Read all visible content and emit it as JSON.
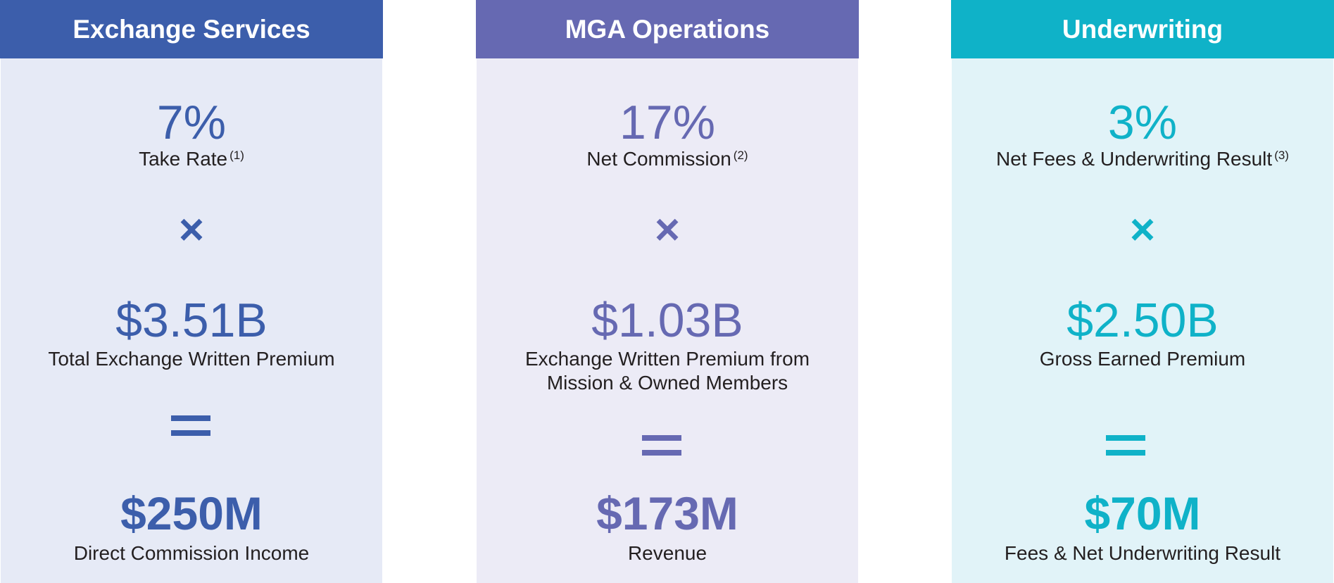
{
  "columns": [
    {
      "title": "Exchange Services",
      "rate": "7%",
      "rate_label": "Take Rate",
      "rate_note": "(1)",
      "premium": "$3.51B",
      "premium_label_line1": "Total Exchange Written Premium",
      "premium_label_line2": "",
      "result": "$250M",
      "result_label": "Direct Commission Income",
      "colors": {
        "header": "#3c5eab",
        "panel": "#e6eaf6",
        "accent": "#3c5eab"
      },
      "times_icon": "multiply-icon",
      "equals_icon": "equals-icon"
    },
    {
      "title": "MGA Operations",
      "rate": "17%",
      "rate_label": "Net Commission",
      "rate_note": "(2)",
      "premium": "$1.03B",
      "premium_label_line1": "Exchange Written Premium from",
      "premium_label_line2": "Mission & Owned Members",
      "result": "$173M",
      "result_label": "Revenue",
      "colors": {
        "header": "#6669b2",
        "panel": "#ecebf6",
        "accent": "#6669b2"
      },
      "times_icon": "multiply-icon",
      "equals_icon": "equals-icon"
    },
    {
      "title": "Underwriting",
      "rate": "3%",
      "rate_label": "Net Fees & Underwriting Result",
      "rate_note": "(3)",
      "premium": "$2.50B",
      "premium_label_line1": "Gross Earned Premium",
      "premium_label_line2": "",
      "result": "$70M",
      "result_label": "Fees & Net Underwriting Result",
      "colors": {
        "header": "#0fb2c8",
        "panel": "#e1f3f8",
        "accent": "#0fb2c8"
      },
      "times_icon": "multiply-icon",
      "equals_icon": "equals-icon"
    }
  ]
}
